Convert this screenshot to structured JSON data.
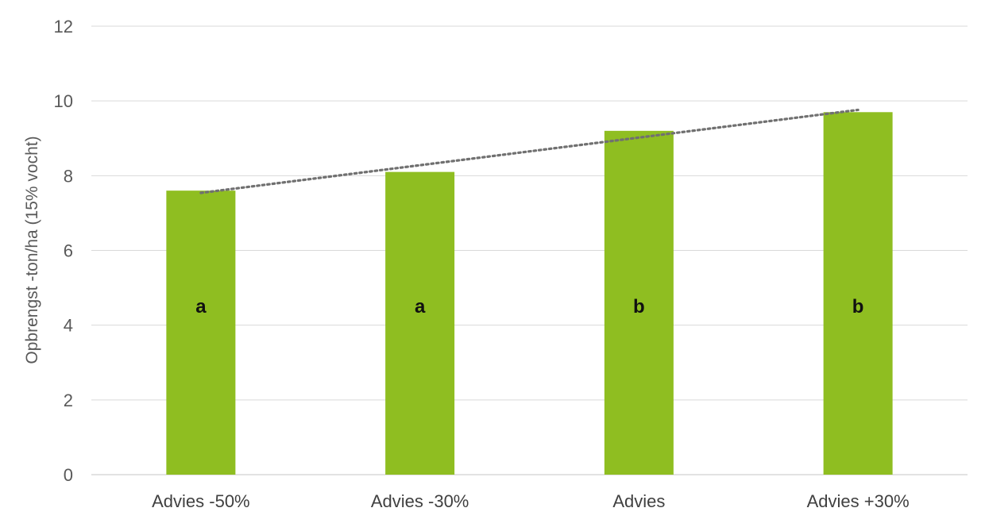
{
  "chart_data": {
    "type": "bar",
    "categories": [
      "Advies -50%",
      "Advies -30%",
      "Advies",
      "Advies +30%"
    ],
    "values": [
      7.6,
      8.1,
      9.2,
      9.7
    ],
    "bar_labels": [
      "a",
      "a",
      "b",
      "b"
    ],
    "ylabel": "Opbrengst -ton/ha (15% vocht)",
    "xlabel": "",
    "ylim": [
      0,
      12
    ],
    "yticks": [
      0,
      2,
      4,
      6,
      8,
      10,
      12
    ],
    "ytick_labels": [
      "0",
      "2",
      "4",
      "6",
      "8",
      "10",
      "12"
    ],
    "grid": true,
    "legend": "none",
    "trendline": {
      "type": "linear",
      "style": "dotted",
      "color": "#707070"
    },
    "colors": {
      "bar": "#8fbe21"
    }
  }
}
